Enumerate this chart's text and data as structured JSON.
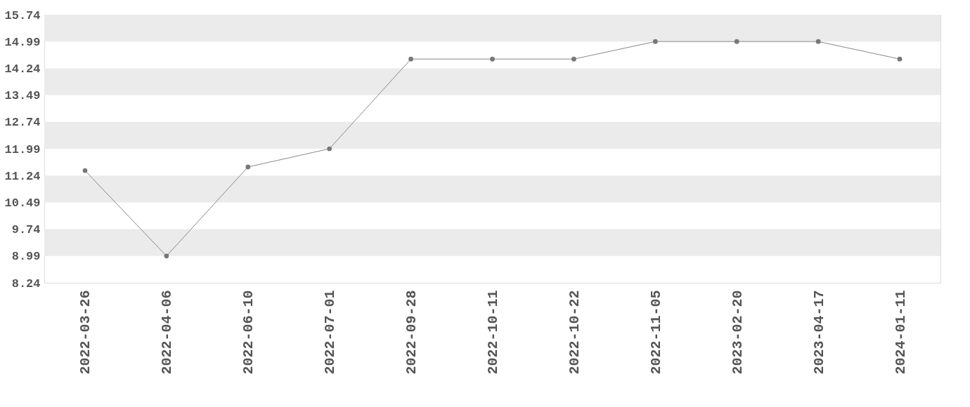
{
  "chart_data": {
    "type": "line",
    "categories": [
      "2022-03-26",
      "2022-04-06",
      "2022-06-10",
      "2022-07-01",
      "2022-09-28",
      "2022-10-11",
      "2022-10-22",
      "2022-11-05",
      "2023-02-20",
      "2023-04-17",
      "2024-01-11"
    ],
    "series": [
      {
        "color": "#777777",
        "values": [
          11.38,
          8.99,
          11.48,
          11.99,
          14.5,
          14.5,
          14.5,
          14.99,
          14.99,
          14.99,
          14.5
        ]
      }
    ],
    "ylim": [
      8.24,
      15.74
    ],
    "yticks": [
      8.24,
      8.99,
      9.74,
      10.49,
      11.24,
      11.99,
      12.74,
      13.49,
      14.24,
      14.99,
      15.74
    ],
    "bands": [
      {
        "axis": "y",
        "from": 8.99,
        "to": 9.74,
        "color": "#ebebeb"
      },
      {
        "axis": "y",
        "from": 10.49,
        "to": 11.24,
        "color": "#ebebeb"
      },
      {
        "axis": "y",
        "from": 11.99,
        "to": 12.74,
        "color": "#ebebeb"
      },
      {
        "axis": "y",
        "from": 13.49,
        "to": 14.24,
        "color": "#ebebeb"
      },
      {
        "axis": "y",
        "from": 14.99,
        "to": 15.74,
        "color": "#ebebeb"
      }
    ],
    "marker": "circle",
    "line_style": "solid",
    "grid": false
  }
}
